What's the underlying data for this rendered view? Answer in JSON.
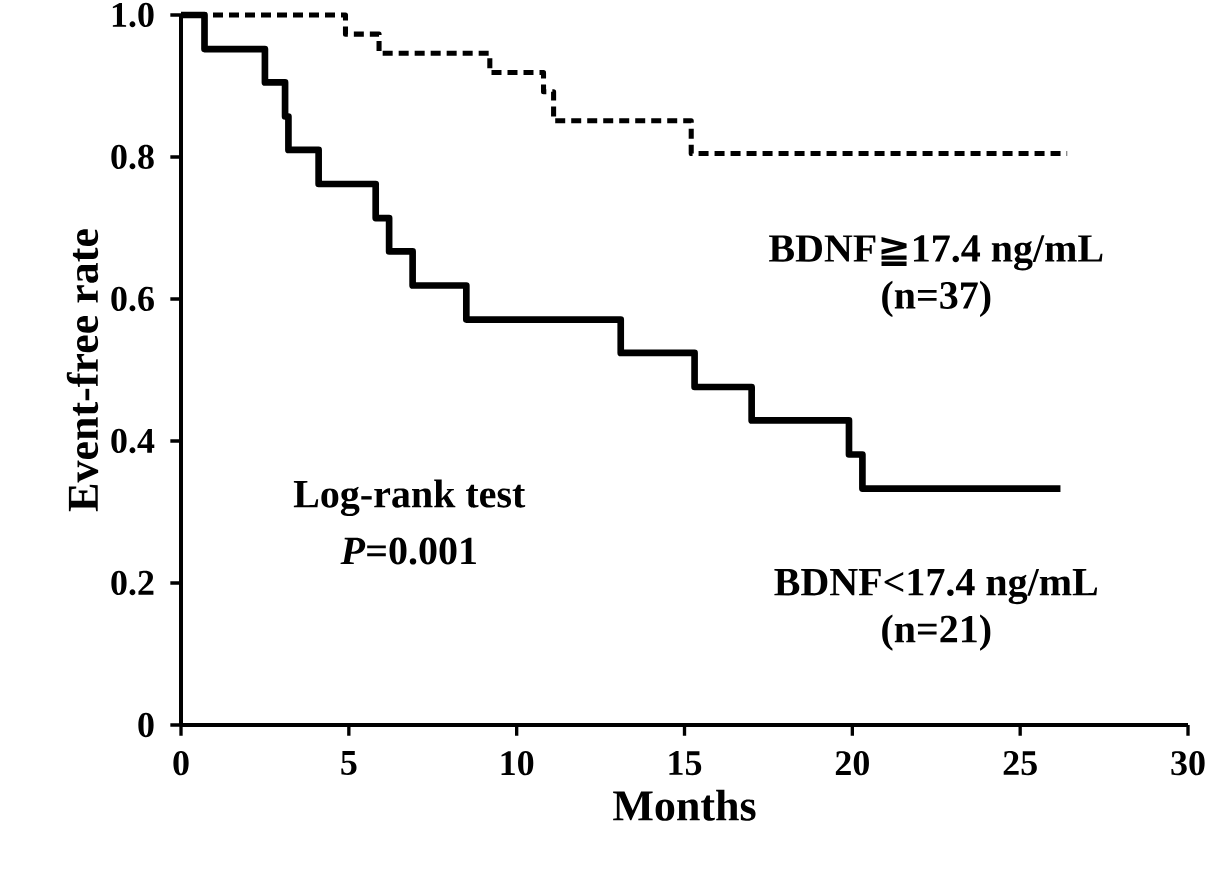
{
  "chart_data": {
    "type": "step",
    "xlabel": "Months",
    "ylabel": "Event-free rate",
    "xlim": [
      0,
      30
    ],
    "xticks": [
      0,
      5,
      10,
      15,
      20,
      25,
      30
    ],
    "ylim": [
      0,
      1.0
    ],
    "yticks": [
      0,
      0.2,
      0.4,
      0.6,
      0.8,
      {
        "value": 1.0,
        "label": "1.0"
      }
    ],
    "series": [
      {
        "name": "BDNF≧17.4 ng/mL",
        "color": "#000000",
        "line_style": "dashed",
        "x": [
          0,
          4.9,
          5.9,
          9.2,
          10.8,
          11.1,
          15.2,
          26.4
        ],
        "values": [
          1.0,
          0.973,
          0.946,
          0.919,
          0.892,
          0.851,
          0.805,
          0.805
        ]
      },
      {
        "name": "BDNF<17.4 ng/mL",
        "color": "#000000",
        "line_style": "solid",
        "x": [
          0,
          0.7,
          2.5,
          3.1,
          3.2,
          4.1,
          5.8,
          6.2,
          6.9,
          8.5,
          13.1,
          15.3,
          17.0,
          19.9,
          20.3,
          26.2
        ],
        "values": [
          1.0,
          0.952,
          0.905,
          0.857,
          0.81,
          0.762,
          0.714,
          0.667,
          0.619,
          0.571,
          0.524,
          0.476,
          0.429,
          0.381,
          0.333,
          0.333
        ]
      }
    ],
    "annotations": [
      "(n=37)",
      "(n=21)",
      "Log-rank test",
      "*P*=0.001"
    ]
  }
}
